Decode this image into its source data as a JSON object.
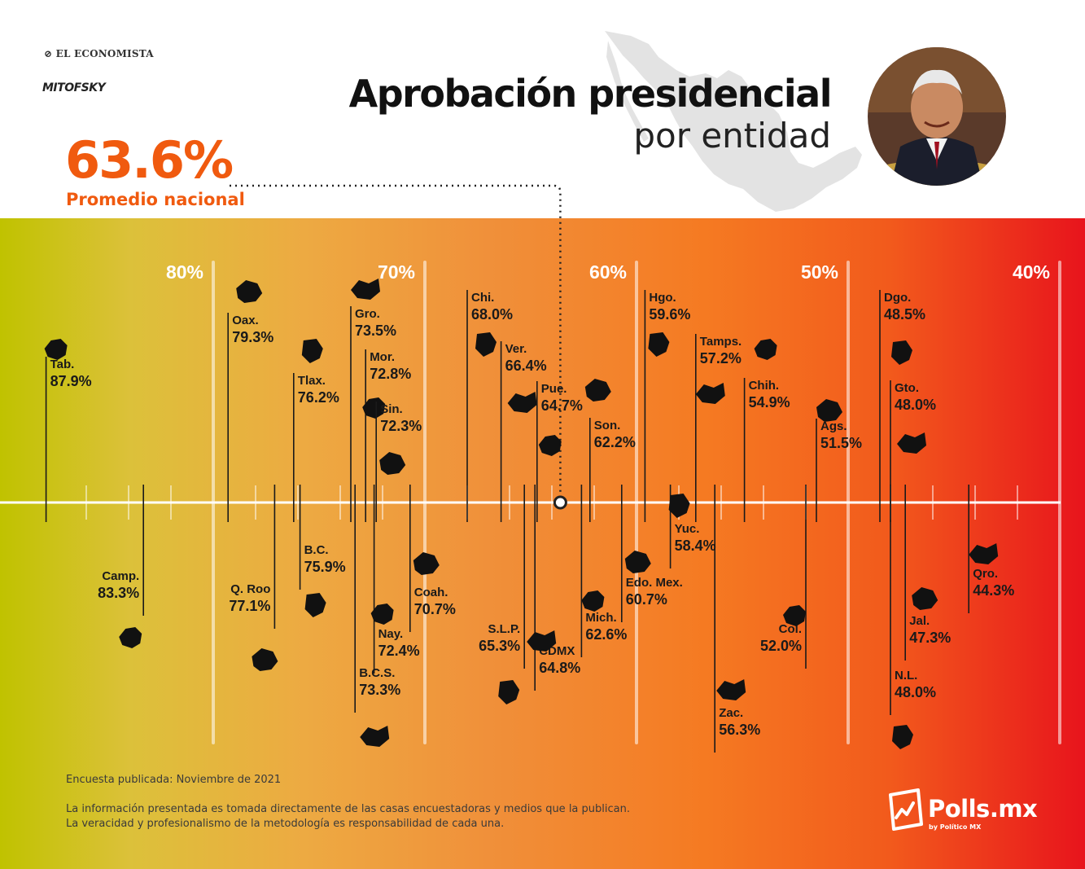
{
  "brands": {
    "top": "EL ECONOMISTA",
    "second": "MITOFSKY",
    "footer_logo": "Polls.mx",
    "footer_sub": "by Político MX"
  },
  "header": {
    "title": "Aprobación presidencial",
    "subtitle": "por entidad"
  },
  "average": {
    "value": "63.6%",
    "label": "Promedio nacional"
  },
  "footer": {
    "survey": "Encuesta publicada: Noviembre de 2021",
    "disclaimer_1": "La información presentada es tomada directamente de las casas encuestadoras y medios que la publican.",
    "disclaimer_2": "La veracidad y profesionalismo de la metodología es responsabilidad de cada una."
  },
  "colors": {
    "accent": "#f05a0f",
    "gradient_left": "#c0c200",
    "gradient_right": "#e8141c",
    "shape": "#111111"
  },
  "chart_data": {
    "type": "scatter",
    "x_axis": {
      "reversed": true,
      "ticks": [
        80,
        70,
        60,
        50,
        40
      ],
      "tick_labels": [
        "80%",
        "70%",
        "60%",
        "50%",
        "40%"
      ],
      "range": [
        89.5,
        38.5
      ]
    },
    "national_average": 63.6,
    "points": [
      {
        "state": "Tab.",
        "value": 87.9,
        "value_label": "87.9%",
        "side": "above"
      },
      {
        "state": "Oax.",
        "value": 79.3,
        "value_label": "79.3%",
        "side": "above"
      },
      {
        "state": "Tlax.",
        "value": 76.2,
        "value_label": "76.2%",
        "side": "above"
      },
      {
        "state": "Gro.",
        "value": 73.5,
        "value_label": "73.5%",
        "side": "above"
      },
      {
        "state": "Mor.",
        "value": 72.8,
        "value_label": "72.8%",
        "side": "above"
      },
      {
        "state": "Sin.",
        "value": 72.3,
        "value_label": "72.3%",
        "side": "above"
      },
      {
        "state": "Chi.",
        "value": 68.0,
        "value_label": "68.0%",
        "side": "above"
      },
      {
        "state": "Ver.",
        "value": 66.4,
        "value_label": "66.4%",
        "side": "above"
      },
      {
        "state": "Pue.",
        "value": 64.7,
        "value_label": "64.7%",
        "side": "above"
      },
      {
        "state": "Son.",
        "value": 62.2,
        "value_label": "62.2%",
        "side": "above"
      },
      {
        "state": "Hgo.",
        "value": 59.6,
        "value_label": "59.6%",
        "side": "above"
      },
      {
        "state": "Tamps.",
        "value": 57.2,
        "value_label": "57.2%",
        "side": "above"
      },
      {
        "state": "Chih.",
        "value": 54.9,
        "value_label": "54.9%",
        "side": "above"
      },
      {
        "state": "Ags.",
        "value": 51.5,
        "value_label": "51.5%",
        "side": "above"
      },
      {
        "state": "Dgo.",
        "value": 48.5,
        "value_label": "48.5%",
        "side": "above"
      },
      {
        "state": "Gto.",
        "value": 48.0,
        "value_label": "48.0%",
        "side": "above"
      },
      {
        "state": "Camp.",
        "value": 83.3,
        "value_label": "83.3%",
        "side": "below"
      },
      {
        "state": "Q. Roo",
        "value": 77.1,
        "value_label": "77.1%",
        "side": "below"
      },
      {
        "state": "B.C.",
        "value": 75.9,
        "value_label": "75.9%",
        "side": "below"
      },
      {
        "state": "B.C.S.",
        "value": 73.3,
        "value_label": "73.3%",
        "side": "below"
      },
      {
        "state": "Nay.",
        "value": 72.4,
        "value_label": "72.4%",
        "side": "below"
      },
      {
        "state": "Coah.",
        "value": 70.7,
        "value_label": "70.7%",
        "side": "below"
      },
      {
        "state": "S.L.P.",
        "value": 65.3,
        "value_label": "65.3%",
        "side": "below"
      },
      {
        "state": "CDMX",
        "value": 64.8,
        "value_label": "64.8%",
        "side": "below"
      },
      {
        "state": "Mich.",
        "value": 62.6,
        "value_label": "62.6%",
        "side": "below"
      },
      {
        "state": "Edo. Mex.",
        "value": 60.7,
        "value_label": "60.7%",
        "side": "below"
      },
      {
        "state": "Yuc.",
        "value": 58.4,
        "value_label": "58.4%",
        "side": "below"
      },
      {
        "state": "Zac.",
        "value": 56.3,
        "value_label": "56.3%",
        "side": "below"
      },
      {
        "state": "Col.",
        "value": 52.0,
        "value_label": "52.0%",
        "side": "below"
      },
      {
        "state": "Jal.",
        "value": 47.3,
        "value_label": "47.3%",
        "side": "below"
      },
      {
        "state": "N.L.",
        "value": 48.0,
        "value_label": "48.0%",
        "side": "below"
      },
      {
        "state": "Qro.",
        "value": 44.3,
        "value_label": "44.3%",
        "side": "below"
      }
    ]
  }
}
